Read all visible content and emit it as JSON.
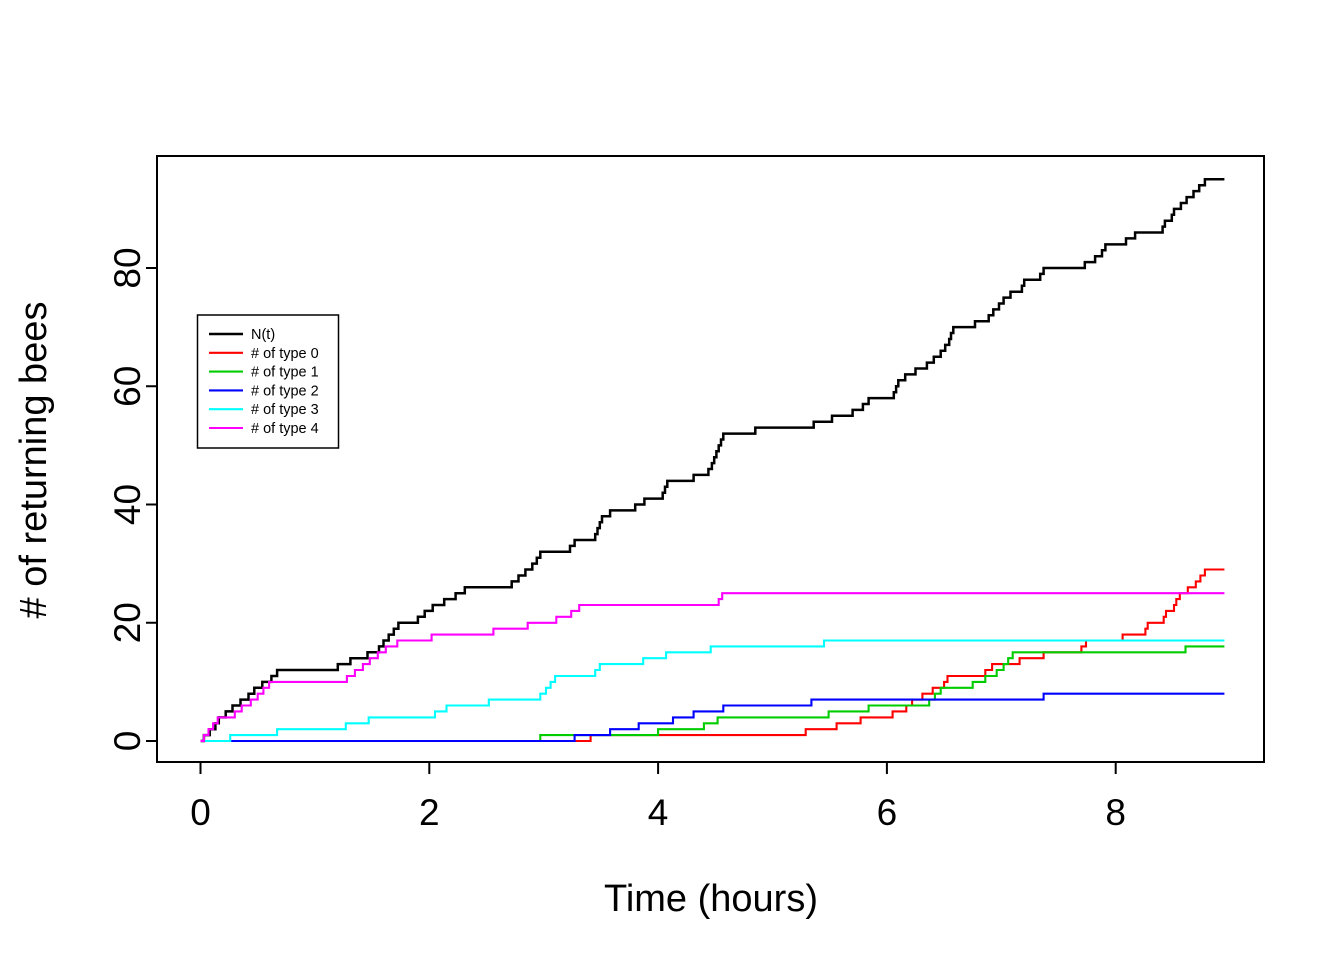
{
  "figure": {
    "background": "#ffffff"
  },
  "axes": {
    "xlabel": "Time (hours)",
    "ylabel": "# of returning bees",
    "x_tick_labels": [
      "0",
      "2",
      "4",
      "6",
      "8"
    ],
    "y_tick_labels": [
      "0",
      "20",
      "40",
      "60",
      "80"
    ]
  },
  "legend": {
    "position": "left-middle",
    "entries": [
      {
        "label": "N(t)",
        "color": "#000000"
      },
      {
        "label": "# of type 0",
        "color": "#FF0000"
      },
      {
        "label": "# of type 1",
        "color": "#00CD00"
      },
      {
        "label": "# of type 2",
        "color": "#0000FF"
      },
      {
        "label": "# of type 3",
        "color": "#00FFFF"
      },
      {
        "label": "# of type 4",
        "color": "#FF00FF"
      }
    ]
  },
  "chart_data": {
    "type": "line",
    "step": true,
    "title": "",
    "xlabel": "Time (hours)",
    "ylabel": "# of returning bees",
    "xlim": [
      -0.36,
      9.31
    ],
    "ylim": [
      -3.8,
      98.8
    ],
    "x_ticks": [
      0,
      2,
      4,
      6,
      8
    ],
    "y_ticks": [
      0,
      20,
      40,
      60,
      80
    ],
    "grid": false,
    "legend_position": "left-middle",
    "t_start": 0,
    "t_end": 8.95,
    "series": [
      {
        "name": "N(t)",
        "color": "#000000",
        "start_value": 0,
        "final_value": 95,
        "jump_times": [
          0.03,
          0.08,
          0.13,
          0.16,
          0.22,
          0.28,
          0.35,
          0.42,
          0.47,
          0.54,
          0.62,
          0.67,
          1.2,
          1.31,
          1.46,
          1.56,
          1.6,
          1.645,
          1.69,
          1.73,
          1.9,
          1.96,
          2.03,
          2.13,
          2.23,
          2.31,
          2.72,
          2.78,
          2.84,
          2.9,
          2.94,
          2.97,
          3.23,
          3.27,
          3.45,
          3.47,
          3.49,
          3.51,
          3.58,
          3.8,
          3.88,
          4.04,
          4.06,
          4.08,
          4.31,
          4.44,
          4.47,
          4.49,
          4.51,
          4.53,
          4.55,
          4.57,
          4.85,
          5.36,
          5.52,
          5.7,
          5.79,
          5.84,
          6.06,
          6.08,
          6.1,
          6.16,
          6.25,
          6.35,
          6.41,
          6.47,
          6.51,
          6.545,
          6.56,
          6.58,
          6.77,
          6.89,
          6.93,
          6.98,
          7.02,
          7.08,
          7.18,
          7.2,
          7.34,
          7.37,
          7.73,
          7.82,
          7.88,
          7.91,
          8.09,
          8.17,
          8.41,
          8.43,
          8.49,
          8.51,
          8.57,
          8.62,
          8.68,
          8.73,
          8.78
        ]
      },
      {
        "name": "# of type 0",
        "color": "#FF0000",
        "start_value": 0,
        "final_value": 29,
        "jump_times": [
          3.41,
          5.29,
          5.56,
          5.77,
          6.05,
          6.17,
          6.22,
          6.31,
          6.4,
          6.5,
          6.53,
          6.86,
          6.92,
          7.16,
          7.37,
          7.7,
          7.74,
          8.06,
          8.26,
          8.28,
          8.42,
          8.44,
          8.51,
          8.53,
          8.56,
          8.63,
          8.7,
          8.74,
          8.78
        ]
      },
      {
        "name": "# of type 1",
        "color": "#00CD00",
        "start_value": 0,
        "final_value": 16,
        "jump_times": [
          2.97,
          4.0,
          4.4,
          4.52,
          5.49,
          5.84,
          6.37,
          6.42,
          6.47,
          6.75,
          6.86,
          6.96,
          7.02,
          7.06,
          7.1,
          8.61
        ]
      },
      {
        "name": "# of type 2",
        "color": "#0000FF",
        "start_value": 0,
        "final_value": 8,
        "jump_times": [
          3.27,
          3.58,
          3.83,
          4.13,
          4.31,
          4.57,
          5.34,
          7.37
        ]
      },
      {
        "name": "# of type 3",
        "color": "#00FFFF",
        "start_value": 0,
        "final_value": 17,
        "jump_times": [
          0.26,
          0.67,
          1.27,
          1.47,
          2.05,
          2.15,
          2.52,
          2.97,
          3.02,
          3.06,
          3.1,
          3.45,
          3.49,
          3.87,
          4.07,
          4.46,
          5.45
        ]
      },
      {
        "name": "# of type 4",
        "color": "#FF00FF",
        "start_value": 0,
        "final_value": 25,
        "jump_times": [
          0.03,
          0.07,
          0.11,
          0.15,
          0.3,
          0.36,
          0.44,
          0.5,
          0.55,
          0.6,
          1.28,
          1.35,
          1.42,
          1.48,
          1.55,
          1.62,
          1.72,
          2.02,
          2.56,
          2.86,
          3.11,
          3.24,
          3.31,
          4.53,
          4.56
        ]
      }
    ]
  }
}
